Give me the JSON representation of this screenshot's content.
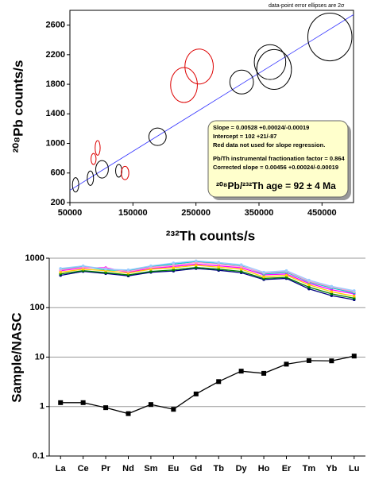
{
  "chart_data": [
    {
      "type": "scatter",
      "annotation_top": "data-point error ellipses are 2σ",
      "x_label": "²³²Th counts/s",
      "y_label": "²⁰⁸Pb counts/s",
      "xlim": [
        50000,
        500000
      ],
      "ylim": [
        200,
        2800
      ],
      "xticks": [
        50000,
        150000,
        250000,
        350000,
        450000
      ],
      "yticks": [
        200,
        600,
        1000,
        1400,
        1800,
        2200,
        2600
      ],
      "fit_line": {
        "slope": 0.00528,
        "intercept": 102,
        "color": "#3333ff"
      },
      "text_box": [
        "Slope = 0.00528  +0.00024/-0.00019",
        "Intercept = 102  +21/-87",
        "Red data not used for slope regression.",
        "Pb/Th instrumental fractionation factor = 0.864",
        "Corrected slope = 0.00456 +0.00024/-0.00019"
      ],
      "age_label": "²⁰⁸Pb/²³²Th age = 92 ± 4 Ma",
      "series": [
        {
          "color": "#000000",
          "x": [
            59000,
            82500,
            101000,
            127500,
            189000,
            322500,
            367500,
            374000,
            462500
          ],
          "values": [
            440,
            530,
            650,
            630,
            1090,
            1830,
            2100,
            2000,
            2440
          ],
          "x_err": [
            5000,
            5000,
            10000,
            5000,
            13750,
            18750,
            25000,
            27500,
            35000
          ],
          "y_err": [
            97,
            97,
            118,
            86,
            118,
            161,
            236,
            269,
            323
          ]
        },
        {
          "color": "#dd0000",
          "x": [
            94000,
            87500,
            137500,
            231000,
            255000
          ],
          "values": [
            940,
            790,
            600,
            1790,
            2040
          ],
          "x_err": [
            4000,
            4000,
            6000,
            21250,
            22500
          ],
          "y_err": [
            100,
            75,
            90,
            236,
            236
          ]
        }
      ]
    },
    {
      "type": "line",
      "y_label": "Sample/NASC",
      "log_y": true,
      "grid": true,
      "ylim": [
        0.1,
        1000
      ],
      "yticks": [
        0.1,
        1,
        10,
        100,
        1000
      ],
      "categories": [
        "La",
        "Ce",
        "Pr",
        "Nd",
        "Sm",
        "Eu",
        "Gd",
        "Tb",
        "Dy",
        "Ho",
        "Er",
        "Tm",
        "Yb",
        "Lu"
      ],
      "series": [
        {
          "color": "#000080",
          "values": [
            450,
            540,
            490,
            440,
            520,
            550,
            620,
            570,
            510,
            370,
            390,
            240,
            175,
            145
          ]
        },
        {
          "color": "#008000",
          "values": [
            480,
            560,
            510,
            460,
            540,
            580,
            650,
            600,
            540,
            390,
            410,
            260,
            190,
            155
          ]
        },
        {
          "color": "#ff00ff",
          "values": [
            560,
            640,
            640,
            520,
            620,
            680,
            760,
            700,
            640,
            460,
            480,
            310,
            230,
            190
          ]
        },
        {
          "color": "#00cccc",
          "values": [
            600,
            680,
            580,
            560,
            680,
            760,
            860,
            780,
            700,
            480,
            520,
            330,
            250,
            200
          ]
        },
        {
          "color": "#ffcc00",
          "values": [
            520,
            600,
            560,
            500,
            600,
            640,
            720,
            660,
            600,
            420,
            450,
            290,
            210,
            170
          ]
        },
        {
          "color": "#ff99cc",
          "values": [
            580,
            660,
            620,
            540,
            660,
            720,
            820,
            760,
            680,
            500,
            540,
            340,
            260,
            210
          ]
        },
        {
          "color": "#99ccff",
          "values": [
            620,
            700,
            600,
            580,
            700,
            800,
            880,
            820,
            740,
            520,
            560,
            360,
            270,
            220
          ]
        },
        {
          "color": "#000000",
          "marker": "square",
          "values": [
            1.2,
            1.2,
            0.95,
            0.72,
            1.1,
            0.88,
            1.8,
            3.2,
            5.2,
            4.7,
            7.2,
            8.5,
            8.4,
            10.5
          ]
        }
      ]
    }
  ]
}
